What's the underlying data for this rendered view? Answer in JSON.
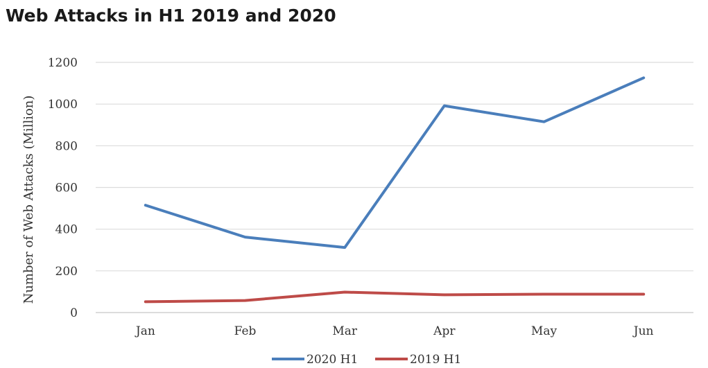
{
  "chart_data": {
    "type": "line",
    "title": "Web Attacks in H1 2019 and 2020",
    "xlabel": "",
    "ylabel": "Number of Web Attacks (Million)",
    "categories": [
      "Jan",
      "Feb",
      "Mar",
      "Apr",
      "May",
      "Jun"
    ],
    "ylim": [
      0,
      1200
    ],
    "yticks": [
      0,
      200,
      400,
      600,
      800,
      1000,
      1200
    ],
    "grid": true,
    "legend_position": "bottom",
    "series": [
      {
        "name": "2020 H1",
        "color": "#4a7ebb",
        "values": [
          515,
          362,
          312,
          992,
          915,
          1126
        ]
      },
      {
        "name": "2019 H1",
        "color": "#be4b48",
        "values": [
          52,
          58,
          98,
          85,
          88,
          88
        ]
      }
    ]
  }
}
